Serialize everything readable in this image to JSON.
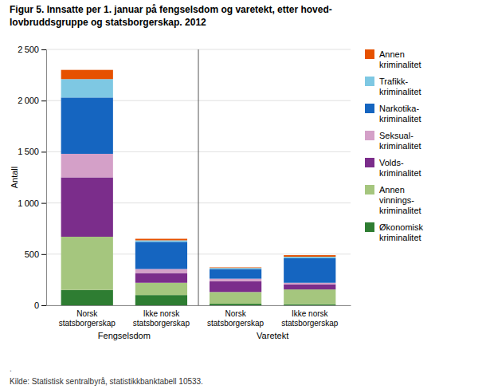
{
  "chart_data": {
    "type": "bar",
    "stacked": true,
    "title": "Figur 5. Innsatte per 1. januar på fengselsdom og varetekt, etter hoved-\nlovbruddsgruppe og statsborgerskap. 2012",
    "ylabel": "Antall",
    "source": "Kilde: Statistisk sentralbyrå, statistikkbanktabell 10533.",
    "annotations": [
      "."
    ],
    "categories": [
      "Norsk\nstatsborgerskap",
      "Ikke norsk\nstatsborgerskap",
      "Norsk\nstatsborgerskap",
      "Ikke norsk\nstatsborgerskap"
    ],
    "group_labels": [
      "Fengselsdom",
      "Varetekt"
    ],
    "series": [
      {
        "name": "Økonomisk\nkriminalitet",
        "color": "#2E7D32",
        "values": [
          150,
          100,
          15,
          10
        ]
      },
      {
        "name": "Annen\nvinnings-\nkriminalitet",
        "color": "#A5C67E",
        "values": [
          520,
          120,
          115,
          145
        ]
      },
      {
        "name": "Volds-\nkriminalitet",
        "color": "#7B2D8B",
        "values": [
          580,
          95,
          105,
          50
        ]
      },
      {
        "name": "Seksual-\nkriminalitet",
        "color": "#D4A0C8",
        "values": [
          230,
          40,
          25,
          15
        ]
      },
      {
        "name": "Narkotika-\nkriminalitet",
        "color": "#1565C0",
        "values": [
          550,
          265,
          95,
          240
        ]
      },
      {
        "name": "Trafikk-\nkriminalitet",
        "color": "#7EC8E3",
        "values": [
          180,
          15,
          10,
          15
        ]
      },
      {
        "name": "Annen\nkriminalitet",
        "color": "#E65100",
        "values": [
          90,
          15,
          5,
          15
        ]
      }
    ],
    "ylim": [
      0,
      2500
    ],
    "yticks": [
      0,
      500,
      {
        "value": 1000,
        "label": "1 000"
      },
      {
        "value": 1500,
        "label": "1 500"
      },
      {
        "value": 2000,
        "label": "2 000"
      },
      {
        "value": 2500,
        "label": "2 500"
      }
    ],
    "grid": true,
    "legend": "right"
  }
}
